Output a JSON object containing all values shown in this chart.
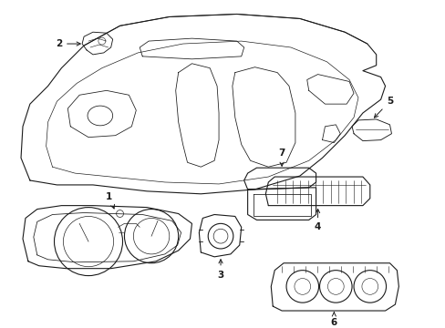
{
  "background_color": "#ffffff",
  "line_color": "#1a1a1a",
  "line_width": 0.8,
  "label_fontsize": 7.5,
  "fig_width": 4.89,
  "fig_height": 3.6,
  "dpi": 100
}
